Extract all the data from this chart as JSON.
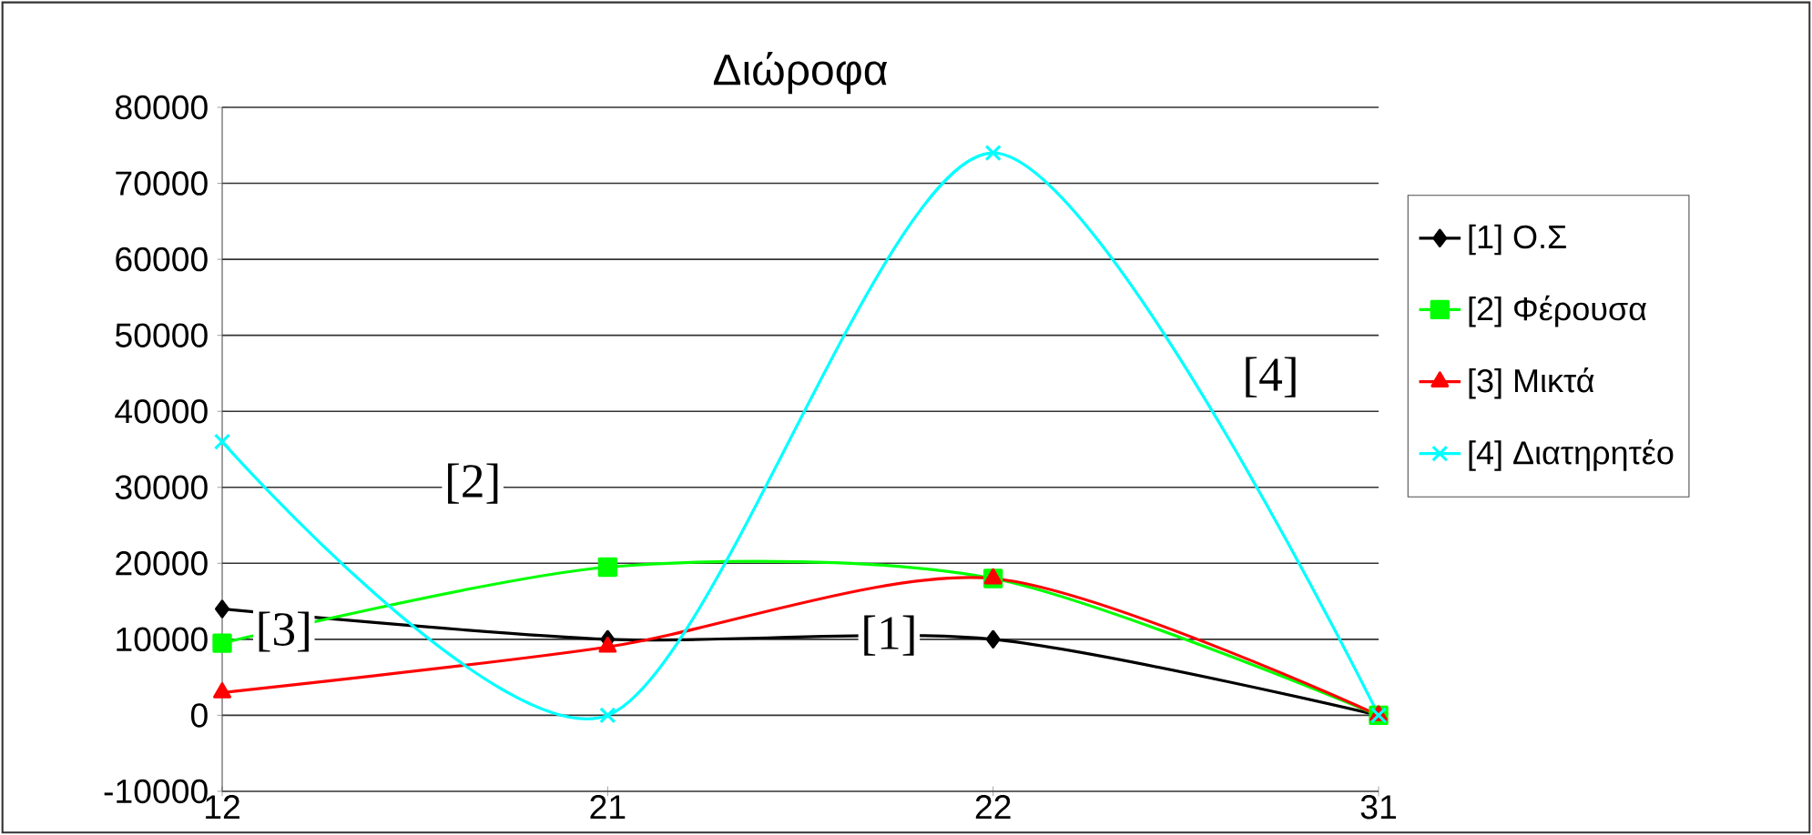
{
  "chart_data": {
    "type": "line",
    "title": "Διώροφα",
    "categories": [
      "12",
      "21",
      "22",
      "31"
    ],
    "series": [
      {
        "name": "[1] Ο.Σ",
        "color": "#000000",
        "marker": "diamond",
        "values": [
          14000,
          10000,
          10000,
          0
        ]
      },
      {
        "name": "[2] Φέρουσα",
        "color": "#00ff00",
        "marker": "square",
        "values": [
          9500,
          19500,
          18000,
          0
        ]
      },
      {
        "name": "[3] Μικτά",
        "color": "#ff0000",
        "marker": "triangle",
        "values": [
          3000,
          9000,
          18000,
          0
        ]
      },
      {
        "name": "[4] Διατηρητέο",
        "color": "#00ffff",
        "marker": "cross",
        "values": [
          36000,
          0,
          74000,
          0
        ]
      }
    ],
    "ylim": [
      -10000,
      80000
    ],
    "yticks": [
      -10000,
      0,
      10000,
      20000,
      30000,
      40000,
      50000,
      60000,
      70000,
      80000
    ],
    "grid": "y",
    "legend": "right",
    "line_style": "solid",
    "annotations": [
      "[1]",
      "[2]",
      "[3]",
      "[4]"
    ]
  }
}
